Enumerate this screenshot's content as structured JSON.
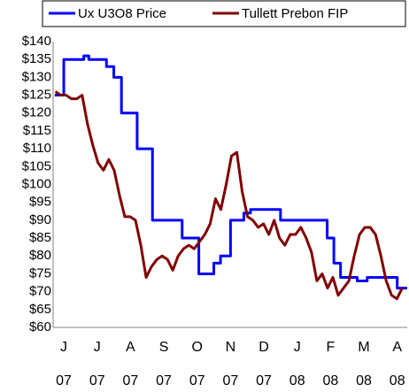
{
  "chart_data": {
    "type": "line",
    "xlim": [
      -0.32,
      10.3
    ],
    "ylim": [
      60,
      140
    ],
    "yticks": [
      {
        "value": 60,
        "label": "$60"
      },
      {
        "value": 65,
        "label": "$65"
      },
      {
        "value": 70,
        "label": "$70"
      },
      {
        "value": 75,
        "label": "$75"
      },
      {
        "value": 80,
        "label": "$80"
      },
      {
        "value": 85,
        "label": "$85"
      },
      {
        "value": 90,
        "label": "$90"
      },
      {
        "value": 95,
        "label": "$95"
      },
      {
        "value": 100,
        "label": "$100"
      },
      {
        "value": 105,
        "label": "$105"
      },
      {
        "value": 110,
        "label": "$110"
      },
      {
        "value": 115,
        "label": "$115"
      },
      {
        "value": 120,
        "label": "$120"
      },
      {
        "value": 125,
        "label": "$125"
      },
      {
        "value": 130,
        "label": "$130"
      },
      {
        "value": 135,
        "label": "$135"
      },
      {
        "value": 140,
        "label": "$140"
      }
    ],
    "xticks": [
      {
        "value": 0,
        "label": "J"
      },
      {
        "value": 1,
        "label": "J"
      },
      {
        "value": 2,
        "label": "A"
      },
      {
        "value": 3,
        "label": "S"
      },
      {
        "value": 4,
        "label": "O"
      },
      {
        "value": 5,
        "label": "N"
      },
      {
        "value": 6,
        "label": "D"
      },
      {
        "value": 7,
        "label": "J"
      },
      {
        "value": 8,
        "label": "F"
      },
      {
        "value": 9,
        "label": "M"
      },
      {
        "value": 10,
        "label": "A"
      }
    ],
    "xtick_years": [
      "07",
      "07",
      "07",
      "07",
      "07",
      "07",
      "07",
      "08",
      "08",
      "08",
      "08"
    ],
    "legend": "top",
    "series": [
      {
        "name": "Ux U3O8 Price",
        "color": "#0000ff",
        "x": [
          -0.27,
          0.0,
          0.0,
          0.6,
          0.6,
          0.75,
          0.75,
          1.28,
          1.28,
          1.5,
          1.5,
          1.73,
          1.73,
          2.2,
          2.2,
          2.66,
          2.66,
          3.55,
          3.55,
          4.05,
          4.05,
          4.5,
          4.5,
          4.7,
          4.7,
          5.0,
          5.0,
          5.4,
          5.4,
          5.6,
          5.6,
          6.5,
          6.5,
          7.9,
          7.9,
          8.1,
          8.1,
          8.3,
          8.3,
          8.8,
          8.8,
          9.1,
          9.1,
          10.0,
          10.0,
          10.3
        ],
        "values": [
          125,
          125,
          135,
          135,
          136,
          136,
          135,
          135,
          133,
          133,
          130,
          130,
          120,
          120,
          110,
          110,
          90,
          90,
          85,
          85,
          75,
          75,
          78,
          78,
          80,
          80,
          90,
          90,
          92,
          92,
          93,
          93,
          90,
          90,
          85,
          85,
          78,
          78,
          74,
          74,
          73,
          73,
          74,
          74,
          71,
          71
        ]
      },
      {
        "name": "Tullett Prebon FIP",
        "color": "#800000",
        "x": [
          -0.25,
          -0.09,
          0.07,
          0.23,
          0.39,
          0.55,
          0.71,
          0.87,
          1.03,
          1.19,
          1.35,
          1.51,
          1.67,
          1.83,
          1.99,
          2.15,
          2.31,
          2.47,
          2.63,
          2.79,
          2.95,
          3.11,
          3.27,
          3.43,
          3.59,
          3.75,
          3.91,
          4.07,
          4.23,
          4.39,
          4.55,
          4.71,
          4.87,
          5.03,
          5.19,
          5.35,
          5.51,
          5.67,
          5.83,
          5.99,
          6.15,
          6.31,
          6.47,
          6.63,
          6.79,
          6.95,
          7.11,
          7.27,
          7.43,
          7.59,
          7.75,
          7.91,
          8.07,
          8.23,
          8.39,
          8.55,
          8.71,
          8.87,
          9.03,
          9.19,
          9.35,
          9.51,
          9.67,
          9.83,
          9.99,
          10.15
        ],
        "values": [
          126,
          125,
          125,
          124,
          124,
          125,
          117,
          111,
          106,
          104,
          107,
          104,
          97,
          91,
          91,
          90,
          83,
          74,
          77,
          79,
          80,
          79,
          76,
          80,
          82,
          83,
          82,
          84,
          86,
          89,
          96,
          93,
          100,
          108,
          109,
          98,
          91,
          90,
          88,
          89,
          86,
          90,
          85,
          83,
          86,
          86,
          88,
          85,
          81,
          73,
          75,
          71,
          74,
          69,
          71,
          73,
          80,
          86,
          88,
          88,
          86,
          80,
          73,
          69,
          68,
          71
        ]
      }
    ]
  }
}
